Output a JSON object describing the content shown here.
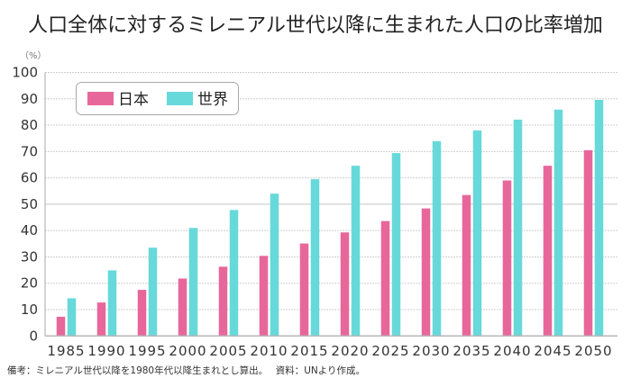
{
  "chart_data": {
    "type": "bar",
    "title": "人口全体に対するミレニアル世代以降に生まれた人口の比率増加",
    "unit_label": "（%）",
    "xlabel": "",
    "ylabel": "%",
    "ylim": [
      0,
      100
    ],
    "yticks": [
      0,
      10,
      20,
      30,
      40,
      50,
      60,
      70,
      80,
      90,
      100
    ],
    "grid": true,
    "legend_position": "top-left",
    "categories": [
      "1985",
      "1990",
      "1995",
      "2000",
      "2005",
      "2010",
      "2015",
      "2020",
      "2025",
      "2030",
      "2035",
      "2040",
      "2045",
      "2050"
    ],
    "series": [
      {
        "name": "日本",
        "color": "#e8679b",
        "values": [
          7.3,
          12.7,
          17.5,
          21.8,
          26.3,
          30.4,
          35.1,
          39.3,
          43.6,
          48.4,
          53.5,
          59.0,
          64.6,
          70.5
        ]
      },
      {
        "name": "世界",
        "color": "#67d9da",
        "values": [
          14.3,
          24.9,
          33.5,
          41.0,
          47.8,
          54.0,
          59.5,
          64.6,
          69.4,
          73.9,
          78.0,
          82.1,
          85.9,
          89.6
        ]
      }
    ],
    "footnote": "備考：ミレニアル世代以降を1980年代以降生まれとし算出。　 資料：UNより作成。"
  }
}
